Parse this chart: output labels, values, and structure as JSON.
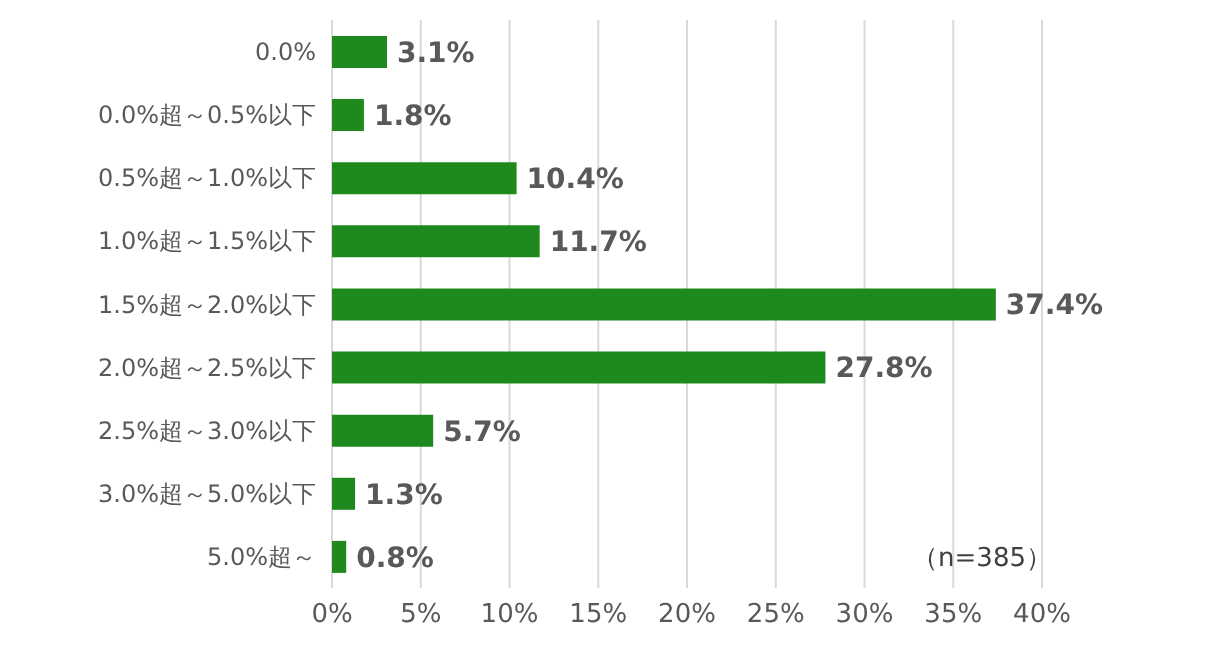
{
  "chart_data": {
    "type": "bar",
    "orientation": "horizontal",
    "categories": [
      "0.0%",
      "0.0%超～0.5%以下",
      "0.5%超～1.0%以下",
      "1.0%超～1.5%以下",
      "1.5%超～2.0%以下",
      "2.0%超～2.5%以下",
      "2.5%超～3.0%以下",
      "3.0%超～5.0%以下",
      "5.0%超～"
    ],
    "values": [
      3.1,
      1.8,
      10.4,
      11.7,
      37.4,
      27.8,
      5.7,
      1.3,
      0.8
    ],
    "value_labels": [
      "3.1%",
      "1.8%",
      "10.4%",
      "11.7%",
      "37.4%",
      "27.8%",
      "5.7%",
      "1.3%",
      "0.8%"
    ],
    "color": "#1e8a1e",
    "xlim": [
      0,
      40
    ],
    "xticks": [
      {
        "value": 0,
        "label": "0%"
      },
      {
        "value": 5,
        "label": "5%"
      },
      {
        "value": 10,
        "label": "10%"
      },
      {
        "value": 15,
        "label": "15%"
      },
      {
        "value": 20,
        "label": "20%"
      },
      {
        "value": 25,
        "label": "25%"
      },
      {
        "value": 30,
        "label": "30%"
      },
      {
        "value": 35,
        "label": "35%"
      },
      {
        "value": 40,
        "label": "40%"
      }
    ],
    "grid": "x",
    "annotations": [
      "（n=385）"
    ]
  }
}
